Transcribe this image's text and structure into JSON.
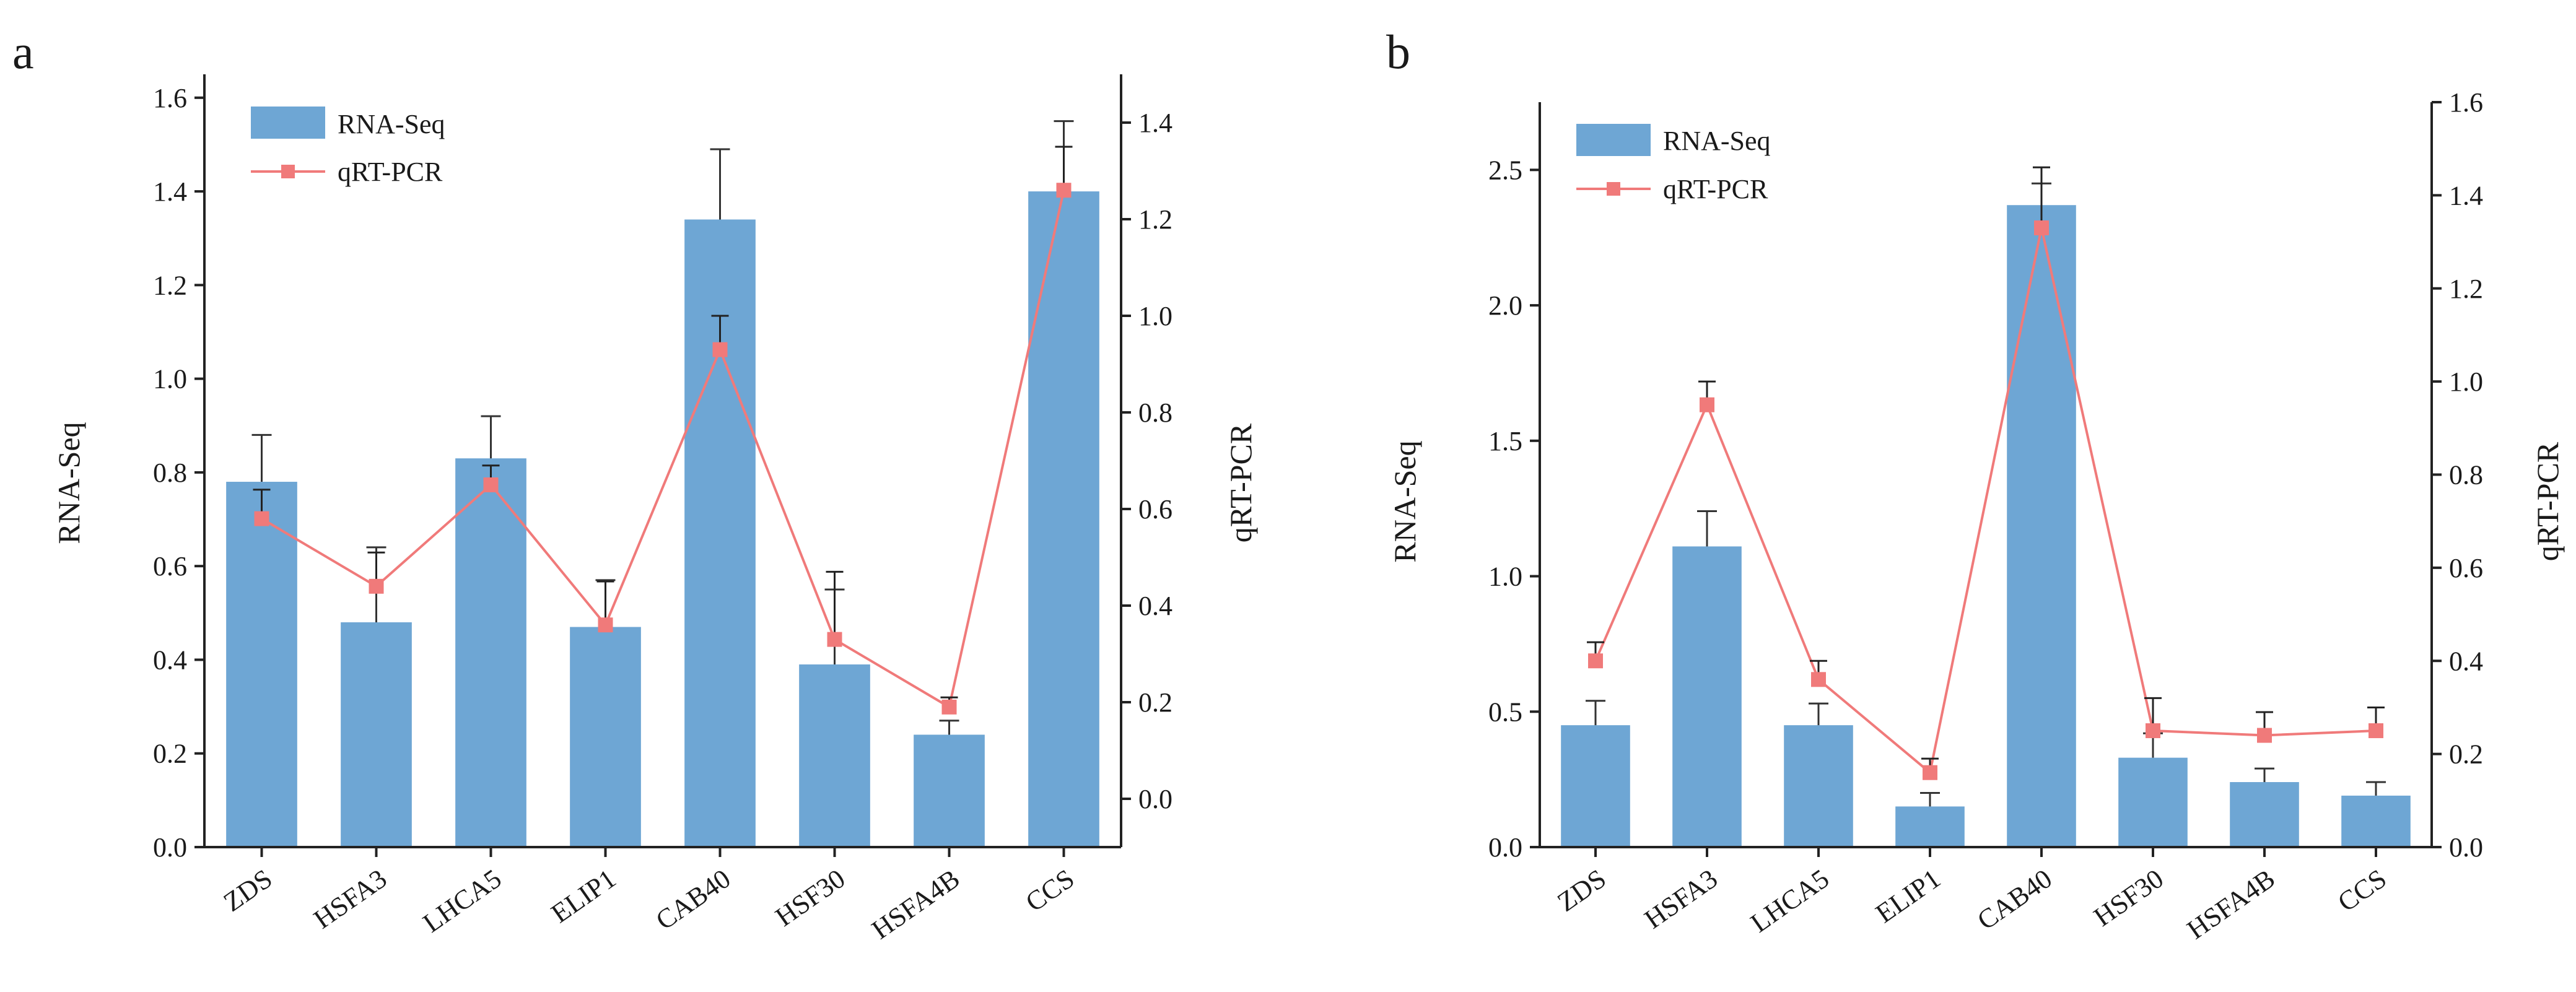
{
  "chart_data": [
    {
      "type": "bar",
      "panel_label": "a",
      "categories": [
        "ZDS",
        "HSFA3",
        "LHCA5",
        "ELIP1",
        "CAB40",
        "HSF30",
        "HSFA4B",
        "CCS"
      ],
      "ylabel": "RNA-Seq",
      "y2label": "qRT-PCR",
      "ylim": [
        0,
        1.65
      ],
      "y_ticks": [
        "0.0",
        "0.2",
        "0.4",
        "0.6",
        "0.8",
        "1.0",
        "1.2",
        "1.4",
        "1.6"
      ],
      "y2lim": [
        -0.1,
        1.5
      ],
      "y2_ticks": [
        "0.0",
        "0.2",
        "0.4",
        "0.6",
        "0.8",
        "1.0",
        "1.2",
        "1.4"
      ],
      "series": [
        {
          "name": "RNA-Seq",
          "kind": "bar",
          "axis": "left",
          "color": "#6ea6d4",
          "values": [
            0.78,
            0.48,
            0.83,
            0.47,
            1.34,
            0.39,
            0.24,
            1.4
          ],
          "errors": [
            0.1,
            0.16,
            0.09,
            0.1,
            0.15,
            0.16,
            0.03,
            0.15
          ]
        },
        {
          "name": "qRT-PCR",
          "kind": "line",
          "axis": "right",
          "color": "#f07a7a",
          "values": [
            0.58,
            0.44,
            0.65,
            0.36,
            0.93,
            0.33,
            0.19,
            1.26
          ],
          "errors": [
            0.06,
            0.07,
            0.04,
            0.09,
            0.07,
            0.14,
            0.02,
            0.09
          ]
        }
      ],
      "legend": [
        "RNA-Seq",
        "qRT-PCR"
      ]
    },
    {
      "type": "bar",
      "panel_label": "b",
      "categories": [
        "ZDS",
        "HSFA3",
        "LHCA5",
        "ELIP1",
        "CAB40",
        "HSF30",
        "HSFA4B",
        "CCS"
      ],
      "ylabel": "RNA-Seq",
      "y2label": "qRT-PCR",
      "ylim": [
        0,
        2.75
      ],
      "y_ticks": [
        "0.0",
        "0.5",
        "1.0",
        "1.5",
        "2.0",
        "2.5"
      ],
      "y2lim": [
        0,
        1.6
      ],
      "y2_ticks": [
        "0.0",
        "0.2",
        "0.4",
        "0.6",
        "0.8",
        "1.0",
        "1.2",
        "1.4",
        "1.6"
      ],
      "series": [
        {
          "name": "RNA-Seq",
          "kind": "bar",
          "axis": "left",
          "color": "#6ea6d4",
          "values": [
            0.45,
            1.11,
            0.45,
            0.15,
            2.37,
            0.33,
            0.24,
            0.19
          ],
          "errors": [
            0.09,
            0.13,
            0.08,
            0.05,
            0.08,
            0.09,
            0.05,
            0.05
          ]
        },
        {
          "name": "qRT-PCR",
          "kind": "line",
          "axis": "right",
          "color": "#f07a7a",
          "values": [
            0.4,
            0.95,
            0.36,
            0.16,
            1.33,
            0.25,
            0.24,
            0.25
          ],
          "errors": [
            0.04,
            0.05,
            0.04,
            0.03,
            0.13,
            0.07,
            0.05,
            0.05
          ]
        }
      ],
      "legend": [
        "RNA-Seq",
        "qRT-PCR"
      ]
    }
  ]
}
